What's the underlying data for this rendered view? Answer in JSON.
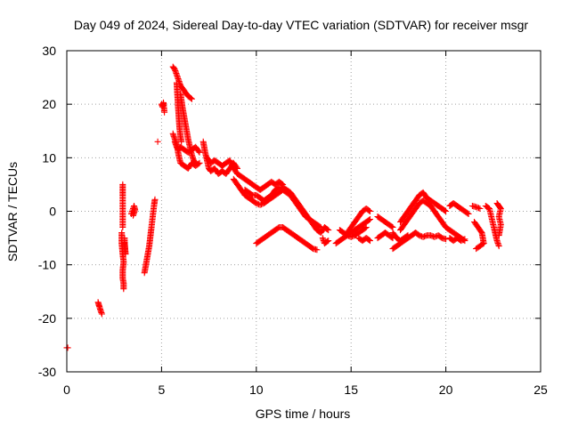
{
  "chart_data": {
    "type": "scatter",
    "title": "Day 049 of 2024, Sidereal Day-to-day VTEC variation (SDTVAR) for receiver msgr",
    "xlabel": "GPS time / hours",
    "ylabel": "SDTVAR / TECUs",
    "xlim": [
      0,
      25
    ],
    "ylim": [
      -30,
      30
    ],
    "xticks": [
      0,
      5,
      10,
      15,
      20,
      25
    ],
    "yticks": [
      -30,
      -20,
      -10,
      0,
      10,
      20,
      30
    ],
    "grid": true,
    "marker": "plus",
    "color": "#ff0000",
    "segments": [
      [
        [
          0.0,
          -25.5
        ],
        [
          0.05,
          -25.5
        ]
      ],
      [
        [
          1.65,
          -17.0
        ],
        [
          1.72,
          -17.8
        ],
        [
          1.78,
          -18.5
        ],
        [
          1.85,
          -19.2
        ]
      ],
      [
        [
          2.95,
          5.0
        ],
        [
          2.95,
          3.0
        ],
        [
          2.95,
          1.0
        ],
        [
          2.95,
          -1.0
        ],
        [
          2.95,
          -3.0
        ]
      ],
      [
        [
          2.9,
          -4.0
        ],
        [
          2.9,
          -6.0
        ],
        [
          2.95,
          -8.0
        ],
        [
          3.0,
          -9.5
        ],
        [
          2.95,
          -11.0
        ],
        [
          2.95,
          -12.5
        ],
        [
          3.0,
          -13.5
        ],
        [
          3.0,
          -14.5
        ]
      ],
      [
        [
          3.05,
          -5.0
        ],
        [
          3.05,
          -6.5
        ],
        [
          3.1,
          -8.0
        ],
        [
          3.05,
          -5.8
        ]
      ],
      [
        [
          3.4,
          -0.5
        ],
        [
          3.45,
          0.0
        ],
        [
          3.5,
          0.5
        ],
        [
          3.55,
          1.0
        ],
        [
          3.6,
          0.3
        ],
        [
          3.5,
          -0.8
        ]
      ],
      [
        [
          4.1,
          -11.5
        ],
        [
          4.15,
          -10.5
        ],
        [
          4.2,
          -9.5
        ],
        [
          4.25,
          -8.5
        ],
        [
          4.3,
          -7.5
        ],
        [
          4.35,
          -6.5
        ],
        [
          4.4,
          -5.0
        ],
        [
          4.45,
          -3.5
        ],
        [
          4.5,
          -2.0
        ],
        [
          4.55,
          -0.5
        ],
        [
          4.6,
          1.0
        ],
        [
          4.65,
          2.2
        ]
      ],
      [
        [
          4.8,
          13.0
        ]
      ],
      [
        [
          5.0,
          20.0
        ],
        [
          5.05,
          19.5
        ],
        [
          5.1,
          20.3
        ],
        [
          5.15,
          18.5
        ]
      ],
      [
        [
          5.6,
          27.0
        ],
        [
          5.7,
          26.5
        ],
        [
          5.8,
          25.5
        ],
        [
          5.9,
          24.5
        ],
        [
          6.0,
          23.5
        ],
        [
          6.2,
          22.5
        ],
        [
          6.4,
          21.5
        ],
        [
          6.6,
          21.0
        ]
      ],
      [
        [
          5.8,
          24.0
        ],
        [
          5.85,
          21.0
        ],
        [
          5.9,
          18.0
        ],
        [
          5.95,
          15.5
        ],
        [
          6.0,
          14.0
        ],
        [
          6.05,
          13.0
        ]
      ],
      [
        [
          6.0,
          22.0
        ],
        [
          6.1,
          19.5
        ],
        [
          6.2,
          17.5
        ],
        [
          6.3,
          15.5
        ],
        [
          6.4,
          13.5
        ],
        [
          6.5,
          12.0
        ],
        [
          6.6,
          10.5
        ],
        [
          6.7,
          9.5
        ],
        [
          6.8,
          9.0
        ]
      ],
      [
        [
          5.7,
          13.0
        ],
        [
          5.8,
          12.0
        ],
        [
          5.9,
          11.5
        ],
        [
          6.0,
          12.0
        ],
        [
          6.2,
          11.5
        ],
        [
          6.4,
          11.0
        ],
        [
          6.6,
          11.5
        ],
        [
          6.8,
          12.0
        ],
        [
          7.0,
          11.0
        ]
      ],
      [
        [
          5.6,
          14.5
        ],
        [
          5.7,
          13.5
        ],
        [
          5.8,
          12.5
        ],
        [
          5.9,
          10.5
        ],
        [
          6.0,
          9.0
        ],
        [
          6.2,
          8.5
        ],
        [
          6.4,
          8.0
        ],
        [
          6.6,
          9.0
        ],
        [
          6.8,
          8.5
        ],
        [
          7.0,
          9.0
        ]
      ],
      [
        [
          7.2,
          13.0
        ],
        [
          7.3,
          11.0
        ],
        [
          7.4,
          9.5
        ],
        [
          7.5,
          8.0
        ],
        [
          7.6,
          7.5
        ],
        [
          7.8,
          8.0
        ],
        [
          8.0,
          7.0
        ],
        [
          8.2,
          7.5
        ],
        [
          8.4,
          7.0
        ],
        [
          8.6,
          8.0
        ],
        [
          8.8,
          9.0
        ],
        [
          9.0,
          8.0
        ]
      ],
      [
        [
          7.4,
          10.0
        ],
        [
          7.6,
          9.0
        ],
        [
          7.8,
          9.5
        ],
        [
          8.0,
          9.0
        ],
        [
          8.2,
          8.5
        ],
        [
          8.4,
          9.0
        ],
        [
          8.6,
          9.5
        ],
        [
          8.8,
          8.0
        ],
        [
          9.0,
          7.0
        ],
        [
          9.2,
          6.5
        ],
        [
          9.4,
          6.0
        ],
        [
          9.6,
          5.5
        ],
        [
          9.8,
          5.0
        ],
        [
          10.0,
          4.5
        ],
        [
          10.2,
          4.0
        ],
        [
          10.4,
          4.5
        ],
        [
          10.6,
          5.0
        ],
        [
          10.8,
          5.5
        ],
        [
          11.0,
          5.0
        ],
        [
          11.2,
          5.5
        ],
        [
          11.4,
          5.0
        ]
      ],
      [
        [
          8.8,
          6.0
        ],
        [
          9.0,
          5.0
        ],
        [
          9.2,
          4.0
        ],
        [
          9.4,
          3.0
        ],
        [
          9.6,
          2.5
        ],
        [
          9.8,
          2.0
        ],
        [
          10.0,
          1.5
        ],
        [
          10.2,
          1.2
        ],
        [
          10.4,
          1.5
        ],
        [
          10.6,
          2.0
        ],
        [
          10.8,
          2.5
        ],
        [
          11.0,
          3.0
        ],
        [
          11.2,
          3.5
        ],
        [
          11.4,
          4.0
        ],
        [
          11.6,
          3.5
        ],
        [
          11.8,
          3.0
        ],
        [
          12.0,
          2.0
        ],
        [
          12.2,
          1.0
        ],
        [
          12.4,
          0.0
        ],
        [
          12.6,
          -1.0
        ],
        [
          12.8,
          -1.5
        ],
        [
          13.0,
          -2.0
        ],
        [
          13.2,
          -2.5
        ],
        [
          13.4,
          -3.0
        ]
      ],
      [
        [
          9.4,
          4.0
        ],
        [
          9.6,
          3.5
        ],
        [
          9.8,
          3.0
        ],
        [
          10.0,
          3.0
        ],
        [
          10.2,
          2.5
        ],
        [
          10.4,
          2.0
        ],
        [
          10.6,
          2.5
        ],
        [
          10.8,
          3.0
        ],
        [
          11.0,
          4.0
        ],
        [
          11.2,
          4.5
        ],
        [
          11.4,
          4.5
        ],
        [
          11.6,
          4.0
        ],
        [
          11.8,
          3.5
        ],
        [
          12.0,
          2.5
        ],
        [
          12.2,
          1.5
        ],
        [
          12.4,
          0.5
        ],
        [
          12.6,
          -0.5
        ],
        [
          12.8,
          -1.5
        ],
        [
          13.0,
          -2.5
        ],
        [
          13.2,
          -3.5
        ],
        [
          13.4,
          -4.0
        ],
        [
          13.6,
          -3.0
        ],
        [
          13.8,
          -3.5
        ]
      ],
      [
        [
          10.0,
          -6.0
        ],
        [
          10.2,
          -5.5
        ],
        [
          10.4,
          -5.0
        ],
        [
          10.6,
          -4.5
        ],
        [
          10.8,
          -4.0
        ],
        [
          11.0,
          -3.5
        ],
        [
          11.2,
          -3.0
        ],
        [
          11.4,
          -3.0
        ],
        [
          11.6,
          -3.5
        ],
        [
          11.8,
          -4.0
        ],
        [
          12.0,
          -4.5
        ],
        [
          12.2,
          -5.0
        ],
        [
          12.4,
          -5.5
        ],
        [
          12.6,
          -6.0
        ],
        [
          12.8,
          -6.5
        ],
        [
          13.0,
          -7.0
        ],
        [
          13.2,
          -7.2
        ]
      ],
      [
        [
          13.5,
          -5.0
        ],
        [
          13.6,
          -6.0
        ],
        [
          13.8,
          -5.5
        ]
      ],
      [
        [
          14.2,
          -6.0
        ],
        [
          14.4,
          -5.5
        ],
        [
          14.6,
          -5.0
        ],
        [
          14.8,
          -4.5
        ],
        [
          15.0,
          -4.0
        ],
        [
          15.2,
          -3.5
        ],
        [
          15.4,
          -3.0
        ],
        [
          15.6,
          -2.5
        ],
        [
          15.8,
          -2.0
        ],
        [
          16.0,
          -1.5
        ]
      ],
      [
        [
          14.4,
          -3.5
        ],
        [
          14.6,
          -4.0
        ],
        [
          14.8,
          -4.5
        ],
        [
          15.0,
          -4.8
        ],
        [
          15.2,
          -4.5
        ],
        [
          15.4,
          -4.0
        ],
        [
          15.6,
          -3.5
        ],
        [
          15.8,
          -3.0
        ]
      ],
      [
        [
          14.8,
          -4.0
        ],
        [
          15.0,
          -3.0
        ],
        [
          15.2,
          -2.0
        ],
        [
          15.4,
          -1.0
        ],
        [
          15.6,
          0.0
        ],
        [
          15.8,
          0.5
        ],
        [
          16.0,
          0.0
        ]
      ],
      [
        [
          15.4,
          -5.0
        ],
        [
          15.6,
          -5.5
        ],
        [
          15.8,
          -5.0
        ],
        [
          16.0,
          -5.5
        ]
      ],
      [
        [
          16.4,
          -1.0
        ],
        [
          16.6,
          -1.5
        ],
        [
          16.8,
          -2.0
        ],
        [
          17.0,
          -2.5
        ],
        [
          17.2,
          -3.0
        ]
      ],
      [
        [
          16.4,
          -5.0
        ],
        [
          16.6,
          -4.5
        ],
        [
          16.8,
          -4.0
        ],
        [
          17.0,
          -4.5
        ],
        [
          17.2,
          -5.0
        ]
      ],
      [
        [
          17.2,
          -4.0
        ],
        [
          17.4,
          -5.0
        ],
        [
          17.6,
          -5.5
        ],
        [
          17.8,
          -5.0
        ],
        [
          18.0,
          -4.5
        ]
      ],
      [
        [
          17.2,
          -7.0
        ],
        [
          17.4,
          -6.5
        ],
        [
          17.6,
          -6.0
        ],
        [
          17.8,
          -5.5
        ],
        [
          18.0,
          -5.0
        ],
        [
          18.2,
          -4.5
        ],
        [
          18.4,
          -4.0
        ],
        [
          18.6,
          -4.5
        ],
        [
          18.8,
          -4.8
        ],
        [
          19.0,
          -4.5
        ],
        [
          19.2,
          -4.5
        ],
        [
          19.4,
          -4.8
        ],
        [
          19.6,
          -4.5
        ],
        [
          19.8,
          -5.0
        ],
        [
          20.0,
          -5.2
        ]
      ],
      [
        [
          17.6,
          -2.0
        ],
        [
          17.8,
          -1.0
        ],
        [
          18.0,
          0.0
        ],
        [
          18.2,
          1.0
        ],
        [
          18.4,
          2.0
        ],
        [
          18.6,
          3.0
        ],
        [
          18.8,
          3.5
        ],
        [
          19.0,
          2.5
        ],
        [
          19.2,
          2.0
        ],
        [
          19.4,
          1.5
        ],
        [
          19.6,
          1.0
        ],
        [
          19.8,
          0.5
        ],
        [
          20.0,
          0.0
        ]
      ],
      [
        [
          17.6,
          -3.5
        ],
        [
          17.8,
          -2.5
        ],
        [
          18.0,
          -1.5
        ],
        [
          18.2,
          -0.5
        ],
        [
          18.4,
          0.5
        ],
        [
          18.6,
          1.5
        ],
        [
          18.8,
          2.0
        ],
        [
          19.0,
          1.5
        ],
        [
          19.2,
          1.0
        ],
        [
          19.4,
          0.0
        ],
        [
          19.6,
          -1.0
        ],
        [
          19.8,
          -2.0
        ],
        [
          20.0,
          -3.0
        ],
        [
          20.2,
          -3.5
        ],
        [
          20.4,
          -4.0
        ],
        [
          20.6,
          -4.5
        ],
        [
          20.8,
          -5.0
        ],
        [
          21.0,
          -5.5
        ]
      ],
      [
        [
          20.2,
          1.0
        ],
        [
          20.4,
          1.5
        ],
        [
          20.6,
          1.0
        ],
        [
          20.8,
          0.5
        ],
        [
          21.0,
          0.0
        ],
        [
          21.2,
          -0.5
        ]
      ],
      [
        [
          20.2,
          -5.0
        ],
        [
          20.4,
          -5.5
        ],
        [
          20.6,
          -5.0
        ],
        [
          20.8,
          -5.5
        ],
        [
          21.0,
          -5.2
        ]
      ],
      [
        [
          21.4,
          1.0
        ],
        [
          21.6,
          0.8
        ],
        [
          21.8,
          0.5
        ]
      ],
      [
        [
          21.5,
          -2.0
        ],
        [
          21.7,
          -3.0
        ],
        [
          21.9,
          -4.0
        ],
        [
          22.0,
          -6.0
        ],
        [
          21.6,
          -7.0
        ]
      ],
      [
        [
          22.1,
          1.0
        ],
        [
          22.3,
          0.5
        ],
        [
          22.4,
          -1.0
        ],
        [
          22.5,
          -2.5
        ],
        [
          22.6,
          -4.0
        ],
        [
          22.7,
          -5.5
        ],
        [
          22.8,
          -6.5
        ]
      ],
      [
        [
          22.7,
          1.5
        ],
        [
          22.8,
          1.0
        ],
        [
          22.9,
          0.5
        ],
        [
          22.8,
          -1.0
        ],
        [
          22.9,
          -2.5
        ],
        [
          22.8,
          -4.5
        ]
      ]
    ]
  }
}
